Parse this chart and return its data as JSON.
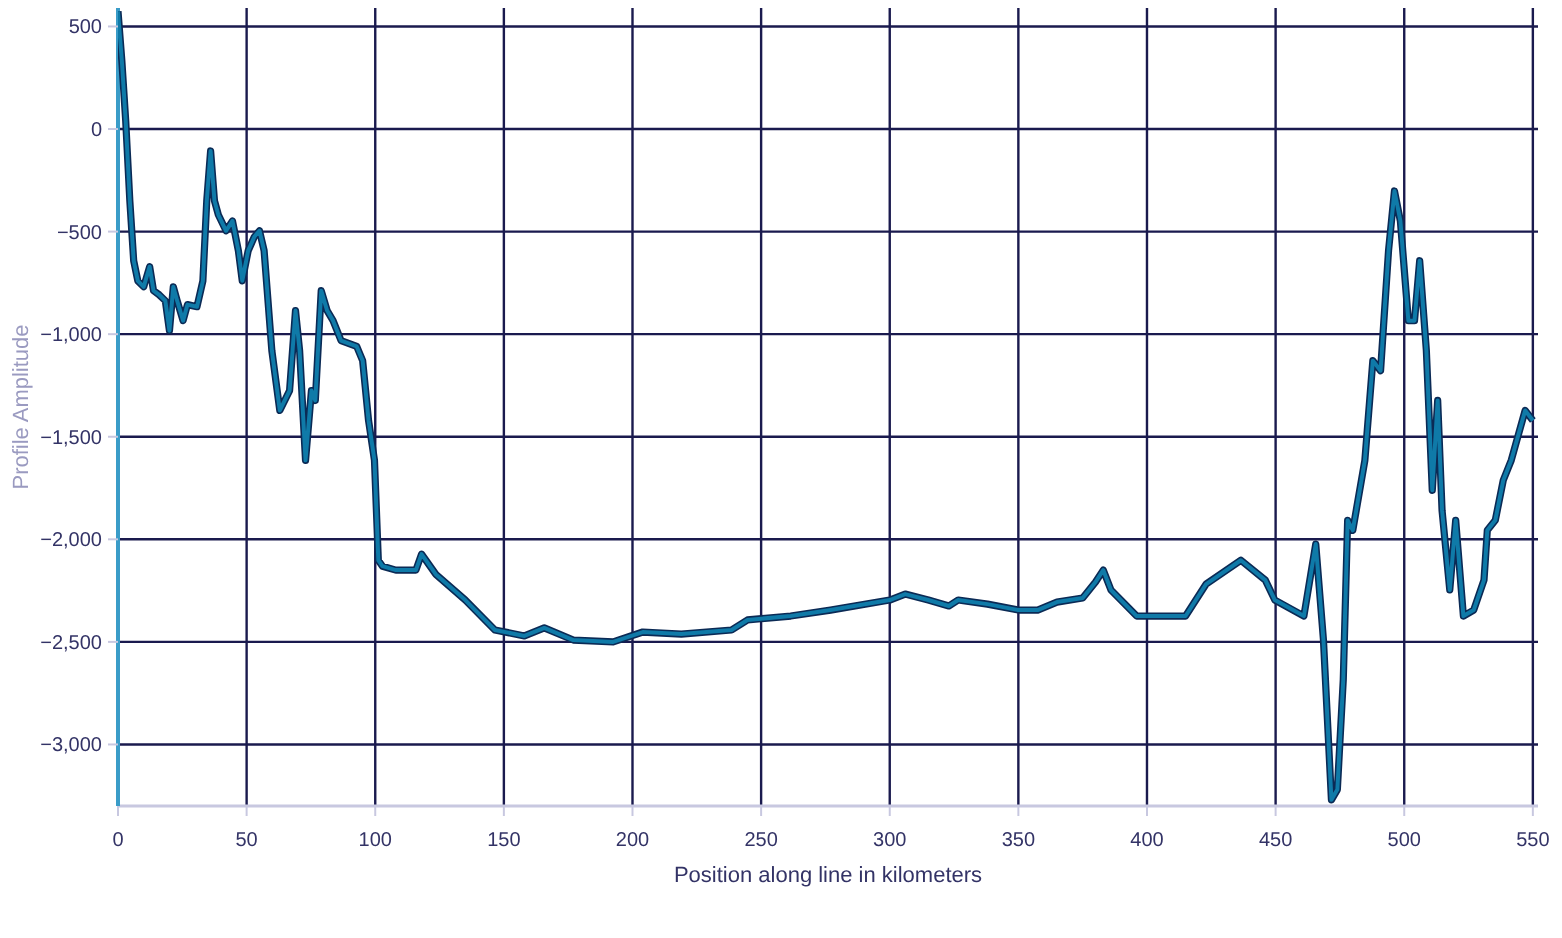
{
  "chart_data": {
    "type": "line",
    "xlabel": "Position along line in kilometers",
    "ylabel": "Profile Amplitude",
    "xlim": [
      0,
      552
    ],
    "xticks": [
      0,
      50,
      100,
      150,
      200,
      250,
      300,
      350,
      400,
      450,
      500,
      550
    ],
    "ylim": [
      -3300,
      590
    ],
    "yticks": [
      500,
      0,
      {
        "value": -500,
        "label": "−500"
      },
      {
        "value": -1000,
        "label": "−1,000"
      },
      {
        "value": -1500,
        "label": "−1,500"
      },
      {
        "value": -2000,
        "label": "−2,000"
      },
      {
        "value": -2500,
        "label": "−2,500"
      },
      {
        "value": -3000,
        "label": "−3,000"
      }
    ],
    "grid": true,
    "line_style": "solid",
    "marker": "none",
    "series": [
      {
        "color": "#0f7aa8",
        "x": [
          0,
          1.5,
          3,
          4.6,
          6.1,
          7.7,
          10,
          12.3,
          13.8,
          16,
          18.4,
          20,
          21.5,
          23,
          25.3,
          27,
          30.7,
          33,
          34.5,
          36,
          37.5,
          39,
          42,
          44.5,
          46.8,
          48.3,
          50.6,
          53,
          55,
          56.8,
          59.8,
          62.9,
          66.7,
          69,
          70.6,
          72.9,
          75.2,
          76.7,
          79,
          81.3,
          83.6,
          86.7,
          92.8,
          95.1,
          97.4,
          99.7,
          101.2,
          102.8,
          108,
          115.8,
          118,
          123.5,
          135,
          146.5,
          158,
          165.7,
          177,
          192.5,
          204,
          219,
          238.5,
          244.7,
          261.5,
          277,
          300,
          306,
          315,
          323,
          326.6,
          338,
          350,
          357.5,
          365,
          375,
          380,
          383,
          386,
          396,
          415,
          423,
          436.5,
          446,
          449.7,
          461,
          465.6,
          468.6,
          471.7,
          474,
          476.3,
          478,
          480,
          484.7,
          487.8,
          490.8,
          493.9,
          496.2,
          498.5,
          501.6,
          504,
          506,
          508.6,
          510.9,
          513,
          514.7,
          517.7,
          520,
          523,
          527,
          531,
          532.3,
          535.4,
          538.5,
          541.6,
          547,
          550
        ],
        "values": [
          574,
          331,
          39,
          -350,
          -642,
          -740,
          -769,
          -671,
          -788,
          -808,
          -837,
          -983,
          -769,
          -837,
          -934,
          -856,
          -866,
          -740,
          -350,
          -107,
          -350,
          -418,
          -496,
          -448,
          -593,
          -740,
          -593,
          -525,
          -496,
          -593,
          -1080,
          -1372,
          -1275,
          -885,
          -1080,
          -1615,
          -1275,
          -1323,
          -788,
          -885,
          -934,
          -1031,
          -1060,
          -1129,
          -1421,
          -1615,
          -2102,
          -2131,
          -2150,
          -2150,
          -2072,
          -2170,
          -2296,
          -2442,
          -2471,
          -2432,
          -2491,
          -2500,
          -2452,
          -2462,
          -2442,
          -2393,
          -2374,
          -2345,
          -2296,
          -2267,
          -2296,
          -2325,
          -2296,
          -2316,
          -2345,
          -2345,
          -2306,
          -2286,
          -2208,
          -2150,
          -2247,
          -2374,
          -2374,
          -2218,
          -2102,
          -2199,
          -2296,
          -2374,
          -2023,
          -2491,
          -3270,
          -3220,
          -2685,
          -1907,
          -1956,
          -1615,
          -1129,
          -1178,
          -593,
          -302,
          -448,
          -934,
          -934,
          -642,
          -1080,
          -1761,
          -1323,
          -1859,
          -2247,
          -1907,
          -2374,
          -2345,
          -2199,
          -1956,
          -1907,
          -1712,
          -1615,
          -1372,
          -1421
        ]
      }
    ]
  }
}
